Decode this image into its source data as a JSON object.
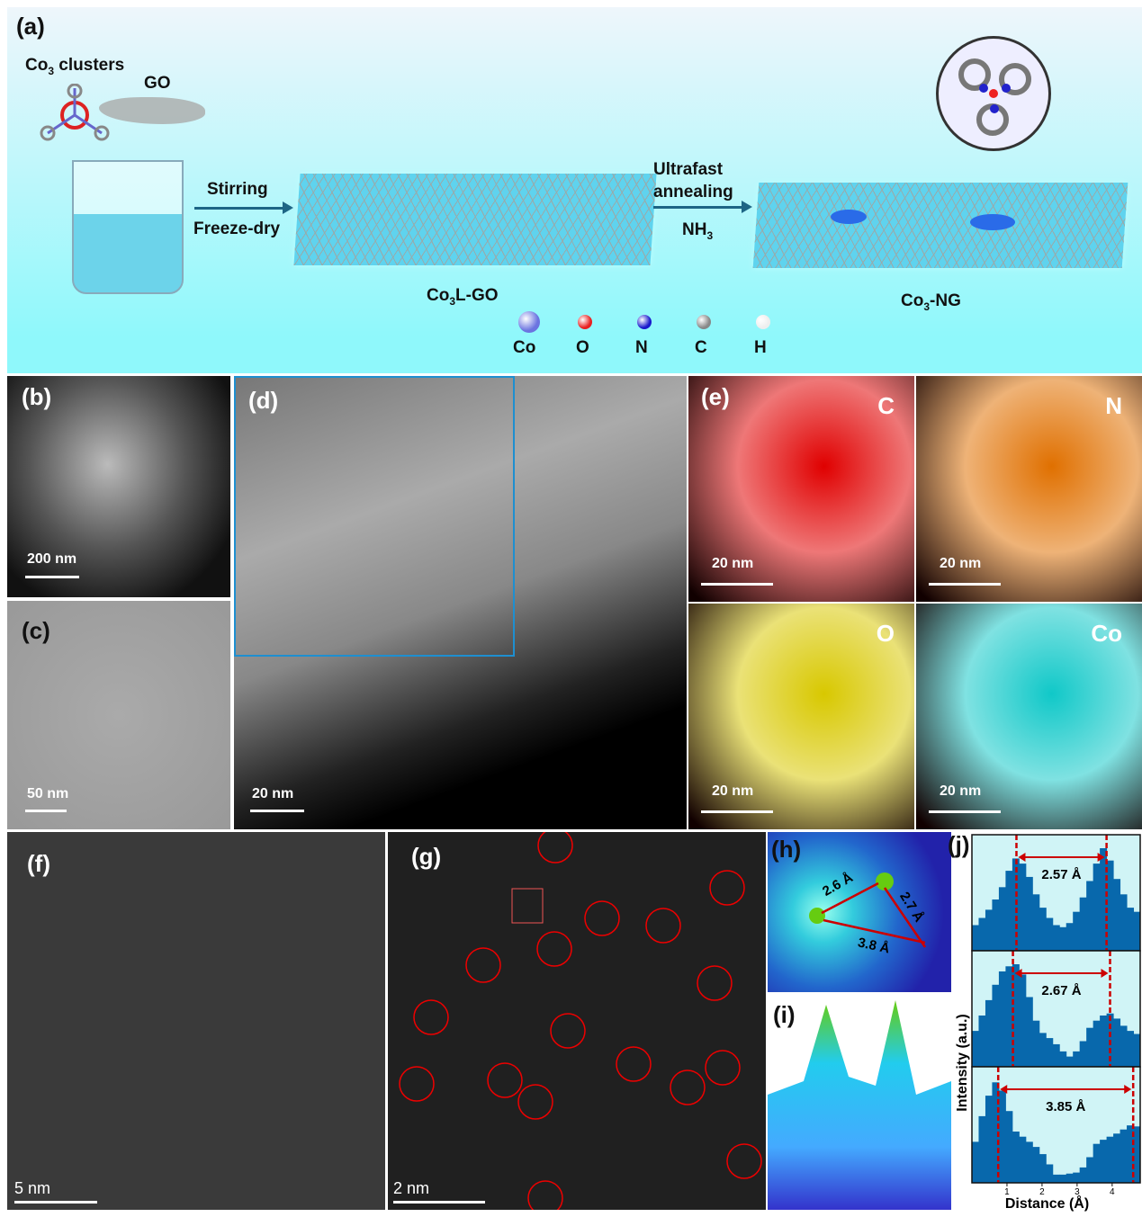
{
  "panel_a": {
    "label": "(a)",
    "co3_clusters": "Co",
    "co3_sub": "3",
    "co3_rest": " clusters",
    "go": "GO",
    "stirring": "Stirring",
    "freeze_dry": "Freeze-dry",
    "ultrafast": "Ultrafast",
    "annealing": "annealing",
    "nh3": "NH",
    "nh3_sub": "3",
    "co3l_go_a": "Co",
    "co3l_go_sub": "3",
    "co3l_go_b": "L-GO",
    "co3_ng_a": "Co",
    "co3_ng_sub": "3",
    "co3_ng_b": "-NG",
    "legend": [
      {
        "label": "Co",
        "color": "#6b74e0"
      },
      {
        "label": "O",
        "color": "#e82020"
      },
      {
        "label": "N",
        "color": "#1a1acc"
      },
      {
        "label": "C",
        "color": "#888888"
      },
      {
        "label": "H",
        "color": "#eeeeee"
      }
    ]
  },
  "panel_b": {
    "label": "(b)",
    "scale": "200 nm"
  },
  "panel_c": {
    "label": "(c)",
    "scale": "50 nm"
  },
  "panel_d": {
    "label": "(d)",
    "scale": "20 nm"
  },
  "panel_e": {
    "label": "(e)",
    "maps": [
      {
        "element": "C",
        "scale": "20 nm",
        "color": "#e00000"
      },
      {
        "element": "N",
        "scale": "20 nm",
        "color": "#e07000"
      },
      {
        "element": "O",
        "scale": "20 nm",
        "color": "#d8c800"
      },
      {
        "element": "Co",
        "scale": "20 nm",
        "color": "#10c8c8"
      }
    ]
  },
  "panel_f": {
    "label": "(f)",
    "scale": "5 nm"
  },
  "panel_g": {
    "label": "(g)",
    "scale": "2 nm"
  },
  "panel_h": {
    "label": "(h)",
    "d1": "2.6 Å",
    "d2": "2.7 Å",
    "d3": "3.8 Å"
  },
  "panel_i": {
    "label": "(i)"
  },
  "chart_data": {
    "type": "bar",
    "label": "(j)",
    "xlabel": "Distance (Å)",
    "ylabel": "Intensity (a.u.)",
    "xlim": [
      0,
      4.8
    ],
    "xticks": [
      "1",
      "2",
      "3",
      "4"
    ],
    "series": [
      {
        "annotation": "2.57 Å",
        "markers": [
          1.27,
          3.84
        ],
        "x": [
          0,
          0.2,
          0.4,
          0.6,
          0.8,
          1.0,
          1.2,
          1.4,
          1.6,
          1.8,
          2.0,
          2.2,
          2.4,
          2.6,
          2.8,
          3.0,
          3.2,
          3.4,
          3.6,
          3.8,
          4.0,
          4.2,
          4.4,
          4.6,
          4.8
        ],
        "values": [
          0.25,
          0.32,
          0.4,
          0.5,
          0.62,
          0.78,
          0.9,
          0.85,
          0.72,
          0.55,
          0.42,
          0.32,
          0.25,
          0.23,
          0.27,
          0.38,
          0.52,
          0.68,
          0.85,
          1.0,
          0.88,
          0.7,
          0.55,
          0.42,
          0.38
        ]
      },
      {
        "annotation": "2.67 Å",
        "markers": [
          1.17,
          3.94
        ],
        "x": [
          0,
          0.2,
          0.4,
          0.6,
          0.8,
          1.0,
          1.2,
          1.4,
          1.6,
          1.8,
          2.0,
          2.2,
          2.4,
          2.6,
          2.8,
          3.0,
          3.2,
          3.4,
          3.6,
          3.8,
          4.0,
          4.2,
          4.4,
          4.6,
          4.8
        ],
        "values": [
          0.35,
          0.5,
          0.65,
          0.8,
          0.93,
          0.98,
          1.0,
          0.9,
          0.68,
          0.45,
          0.33,
          0.28,
          0.22,
          0.15,
          0.1,
          0.15,
          0.25,
          0.38,
          0.45,
          0.5,
          0.52,
          0.47,
          0.4,
          0.35,
          0.32
        ]
      },
      {
        "annotation": "3.85 Å",
        "markers": [
          0.75,
          4.6
        ],
        "x": [
          0,
          0.2,
          0.4,
          0.6,
          0.8,
          1.0,
          1.2,
          1.4,
          1.6,
          1.8,
          2.0,
          2.2,
          2.4,
          2.6,
          2.8,
          3.0,
          3.2,
          3.4,
          3.6,
          3.8,
          4.0,
          4.2,
          4.4,
          4.6,
          4.8
        ],
        "values": [
          0.4,
          0.65,
          0.85,
          0.98,
          0.9,
          0.7,
          0.5,
          0.45,
          0.4,
          0.35,
          0.28,
          0.18,
          0.08,
          0.08,
          0.09,
          0.1,
          0.15,
          0.25,
          0.38,
          0.42,
          0.45,
          0.48,
          0.52,
          0.56,
          0.55
        ]
      }
    ]
  }
}
